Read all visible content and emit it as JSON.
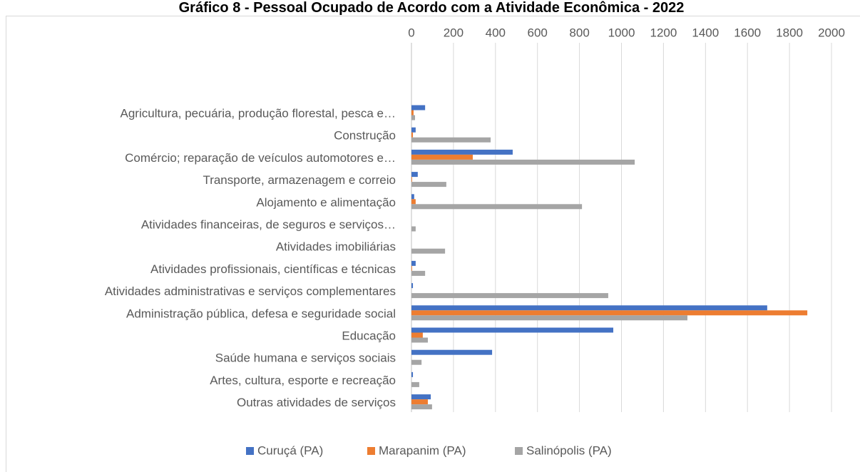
{
  "chart_data": {
    "type": "barh",
    "title": "Gráfico 8 - Pessoal Ocupado de Acordo com a Atividade Econômica - 2022",
    "categories": [
      "Agricultura, pecuária, produção florestal, pesca e…",
      "Construção",
      "Comércio; reparação de veículos automotores e…",
      "Transporte, armazenagem e correio",
      "Alojamento e alimentação",
      "Atividades financeiras, de seguros e serviços…",
      "Atividades imobiliárias",
      "Atividades profissionais, científicas e técnicas",
      "Atividades administrativas e serviços complementares",
      "Administração pública, defesa e seguridade social",
      "Educação",
      "Saúde humana e serviços sociais",
      "Artes, cultura, esporte e recreação",
      "Outras atividades de serviços"
    ],
    "series": [
      {
        "name": "Curuçá (PA)",
        "color": "#4472c4",
        "values": [
          65,
          20,
          482,
          30,
          13,
          0,
          0,
          20,
          7,
          1694,
          961,
          384,
          7,
          92
        ]
      },
      {
        "name": "Marapanim (PA)",
        "color": "#ed7d31",
        "values": [
          10,
          7,
          292,
          3,
          20,
          0,
          0,
          3,
          0,
          1885,
          54,
          0,
          0,
          78
        ]
      },
      {
        "name": "Salinópolis (PA)",
        "color": "#a5a5a5",
        "values": [
          17,
          377,
          1063,
          166,
          812,
          20,
          160,
          65,
          937,
          1314,
          78,
          48,
          37,
          98
        ]
      }
    ],
    "xlim": [
      0,
      2000
    ],
    "xticks": [
      0,
      200,
      400,
      600,
      800,
      1000,
      1200,
      1400,
      1600,
      1800,
      2000
    ],
    "grid": true,
    "legend": "bottom"
  }
}
